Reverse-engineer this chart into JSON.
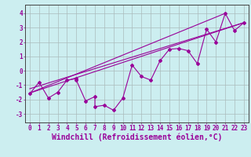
{
  "title": "",
  "xlabel": "Windchill (Refroidissement éolien,°C)",
  "ylabel": "",
  "background_color": "#cceef0",
  "line_color": "#990099",
  "grid_color": "#aabbbb",
  "xlim": [
    -0.5,
    23.5
  ],
  "ylim": [
    -3.6,
    4.6
  ],
  "yticks": [
    -3,
    -2,
    -1,
    0,
    1,
    2,
    3,
    4
  ],
  "xticks": [
    0,
    1,
    2,
    3,
    4,
    5,
    6,
    7,
    8,
    9,
    10,
    11,
    12,
    13,
    14,
    15,
    16,
    17,
    18,
    19,
    20,
    21,
    22,
    23
  ],
  "scatter_x": [
    0,
    1,
    2,
    3,
    4,
    5,
    5,
    6,
    7,
    7,
    8,
    9,
    10,
    11,
    12,
    13,
    14,
    15,
    16,
    17,
    18,
    19,
    20,
    21,
    22,
    23
  ],
  "scatter_y": [
    -1.6,
    -0.8,
    -1.9,
    -1.5,
    -0.65,
    -0.55,
    -0.65,
    -2.1,
    -1.8,
    -2.5,
    -2.4,
    -2.75,
    -1.9,
    0.4,
    -0.4,
    -0.65,
    0.7,
    1.5,
    1.55,
    1.4,
    0.5,
    2.9,
    2.0,
    4.0,
    2.8,
    3.35
  ],
  "line1_x": [
    0,
    23
  ],
  "line1_y": [
    -1.55,
    3.35
  ],
  "line2_x": [
    0,
    21
  ],
  "line2_y": [
    -1.55,
    4.0
  ],
  "line3_x": [
    0,
    23
  ],
  "line3_y": [
    -1.25,
    3.35
  ],
  "xlabel_fontsize": 7,
  "tick_fontsize": 5.5
}
